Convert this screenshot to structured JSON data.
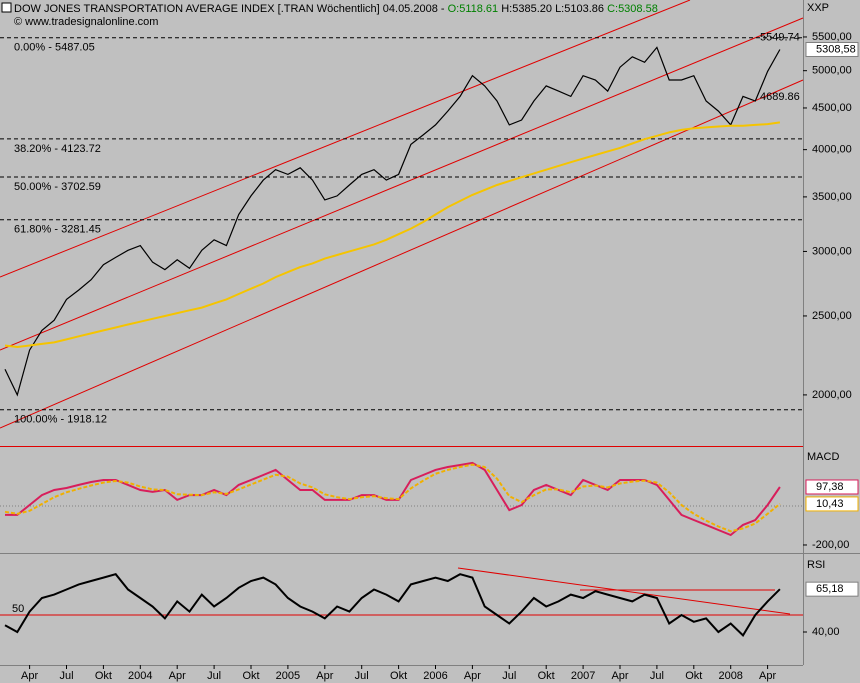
{
  "chart_data": [
    {
      "type": "line",
      "title": "DOW JONES TRANSPORTATION AVERAGE INDEX [.TRAN  Wöchentlich] 04.05.2008 -",
      "ohlc": [
        "O:5118.61",
        "H:5385.20",
        "L:5103.86",
        "C:5308.58"
      ],
      "subtitle": "© www.tradesignalonline.com",
      "axis_name": "XXP",
      "log_scale": true,
      "ylim": [
        1736,
        6054
      ],
      "yticks": [
        {
          "value": 2000,
          "label": "2000,00"
        },
        {
          "value": 2500,
          "label": "2500,00"
        },
        {
          "value": 3000,
          "label": "3000,00"
        },
        {
          "value": 3500,
          "label": "3500,00"
        },
        {
          "value": 4000,
          "label": "4000,00"
        },
        {
          "value": 4500,
          "label": "4500,00"
        },
        {
          "value": 5000,
          "label": "5000,00"
        },
        {
          "value": 5500,
          "label": "5500,00"
        }
      ],
      "fib_levels": [
        {
          "value": 5487.05,
          "label": "0.00% - 5487.05"
        },
        {
          "value": 4123.72,
          "label": "38.20% - 4123.72"
        },
        {
          "value": 3702.59,
          "label": "50.00% - 3702.59"
        },
        {
          "value": 3281.45,
          "label": "61.80% - 3281.45"
        },
        {
          "value": 1918.12,
          "label": "100.00% - 1918.12"
        }
      ],
      "channel_ends": [
        5549.74,
        4689.86
      ],
      "series": [
        {
          "color": "#000000",
          "end_label": "5308,58",
          "values": [
            2150,
            2000,
            2270,
            2400,
            2470,
            2620,
            2690,
            2770,
            2890,
            2950,
            3010,
            3050,
            2910,
            2850,
            2930,
            2860,
            3010,
            3100,
            3050,
            3330,
            3510,
            3670,
            3780,
            3730,
            3800,
            3670,
            3470,
            3510,
            3620,
            3730,
            3780,
            3670,
            3730,
            4060,
            4170,
            4290,
            4460,
            4650,
            4930,
            4790,
            4590,
            4290,
            4350,
            4590,
            4790,
            4720,
            4650,
            4930,
            4870,
            4720,
            5050,
            5200,
            5120,
            5340,
            4870,
            4870,
            4930,
            4590,
            4460,
            4290,
            4650,
            4590,
            4990,
            5308.58
          ]
        },
        {
          "color": "#f5c400",
          "values": [
            2300,
            2290,
            2300,
            2310,
            2320,
            2340,
            2360,
            2380,
            2400,
            2420,
            2440,
            2460,
            2480,
            2500,
            2520,
            2540,
            2560,
            2590,
            2620,
            2660,
            2700,
            2740,
            2790,
            2830,
            2870,
            2900,
            2940,
            2970,
            3000,
            3030,
            3060,
            3100,
            3150,
            3200,
            3260,
            3330,
            3400,
            3460,
            3520,
            3570,
            3620,
            3660,
            3700,
            3740,
            3780,
            3820,
            3860,
            3900,
            3940,
            3980,
            4020,
            4070,
            4120,
            4160,
            4200,
            4230,
            4250,
            4260,
            4270,
            4280,
            4280,
            4290,
            4300,
            4320
          ]
        }
      ]
    },
    {
      "type": "line",
      "title": "MACD",
      "ylim": [
        -236,
        287
      ],
      "yticks": [
        {
          "value": -200,
          "label": "-200,00"
        }
      ],
      "series": [
        {
          "color": "#d81e5b",
          "end_label": "97,38",
          "values": [
            -46,
            -46,
            5,
            56,
            82,
            92,
            108,
            123,
            133,
            133,
            108,
            82,
            72,
            82,
            31,
            56,
            56,
            82,
            56,
            108,
            133,
            159,
            185,
            133,
            82,
            82,
            31,
            31,
            31,
            56,
            56,
            31,
            31,
            133,
            159,
            185,
            200,
            210,
            221,
            185,
            82,
            -21,
            5,
            82,
            108,
            82,
            56,
            133,
            108,
            82,
            133,
            133,
            133,
            108,
            31,
            -46,
            -72,
            -97,
            -123,
            -149,
            -97,
            -72,
            5,
            97.38
          ]
        },
        {
          "color": "#f0b000",
          "dashed": true,
          "end_label": "10,43",
          "values": [
            -30,
            -40,
            -25,
            10,
            45,
            70,
            88,
            105,
            120,
            128,
            120,
            100,
            85,
            82,
            60,
            58,
            56,
            70,
            62,
            85,
            110,
            135,
            160,
            150,
            115,
            95,
            60,
            45,
            35,
            45,
            50,
            40,
            35,
            90,
            130,
            165,
            185,
            200,
            212,
            200,
            140,
            50,
            20,
            55,
            85,
            85,
            70,
            100,
            105,
            95,
            115,
            125,
            130,
            120,
            70,
            5,
            -40,
            -75,
            -105,
            -130,
            -115,
            -90,
            -40,
            10.43
          ]
        }
      ]
    },
    {
      "type": "line",
      "title": "RSI",
      "ylim": [
        20.6,
        83.5
      ],
      "yticks": [
        {
          "value": 40,
          "label": "40,00"
        }
      ],
      "reference": 50,
      "categories": [
        null,
        null,
        "Apr",
        null,
        null,
        "Jul",
        null,
        null,
        "Okt",
        null,
        null,
        "2004",
        null,
        null,
        "Apr",
        null,
        null,
        "Jul",
        null,
        null,
        "Okt",
        null,
        null,
        "2005",
        null,
        null,
        "Apr",
        null,
        null,
        "Jul",
        null,
        null,
        "Okt",
        null,
        null,
        "2006",
        null,
        null,
        "Apr",
        null,
        null,
        "Jul",
        null,
        null,
        "Okt",
        null,
        null,
        "2007",
        null,
        null,
        "Apr",
        null,
        null,
        "Jul",
        null,
        null,
        "Okt",
        null,
        null,
        "2008",
        null,
        null,
        "Apr",
        null
      ],
      "series": [
        {
          "color": "#000000",
          "end_label": "65,18",
          "values": [
            44,
            40,
            52,
            60,
            62,
            65,
            68,
            70,
            72,
            74,
            65,
            60,
            55,
            48,
            58,
            52,
            62,
            55,
            60,
            66,
            70,
            72,
            68,
            60,
            55,
            52,
            48,
            55,
            52,
            60,
            65,
            62,
            58,
            68,
            70,
            72,
            70,
            74,
            72,
            55,
            50,
            45,
            52,
            60,
            55,
            58,
            62,
            60,
            64,
            62,
            60,
            58,
            62,
            60,
            45,
            50,
            46,
            48,
            40,
            45,
            38,
            50,
            58,
            65.18
          ]
        }
      ]
    }
  ]
}
